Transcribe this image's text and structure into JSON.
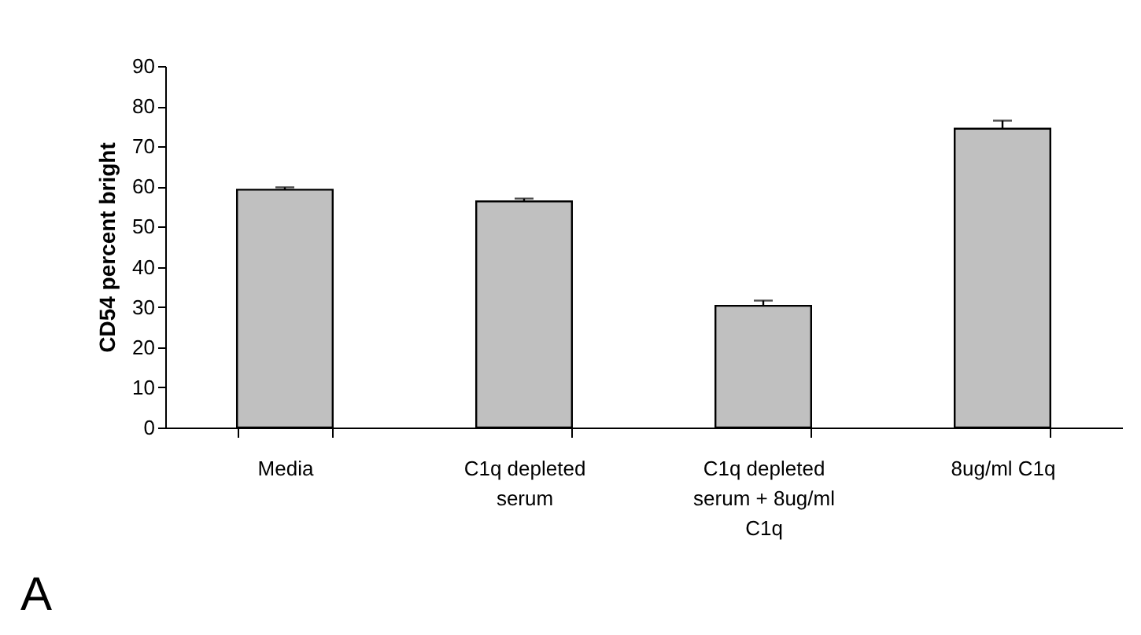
{
  "chart_data": {
    "type": "bar",
    "ylabel": "CD54 percent bright",
    "categories": [
      "Media",
      "C1q depleted serum",
      "C1q depleted serum + 8ug/ml C1q",
      "8ug/ml C1q"
    ],
    "values": [
      59.2,
      56.3,
      30.3,
      74.4
    ],
    "errors": [
      0.6,
      0.7,
      1.3,
      2.0
    ],
    "color": "#c0c0c0",
    "ylim": [
      0,
      90
    ],
    "yticks": [
      0,
      10,
      20,
      30,
      40,
      50,
      60,
      70,
      80,
      90
    ],
    "grid": false,
    "annotations": [
      "A"
    ]
  }
}
